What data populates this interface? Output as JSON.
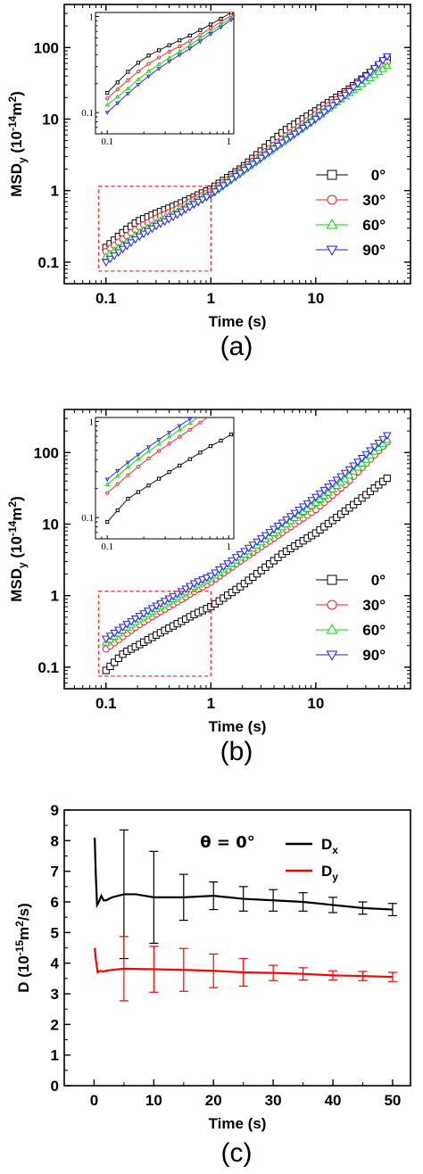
{
  "chart_data": [
    {
      "id": "a",
      "type": "scatter",
      "panel_label": "(a)",
      "xlabel": "Time (s)",
      "ylabel": {
        "base": "MSD",
        "sub": "y",
        "unit": " (10",
        "exp": "-14",
        "unit2": "m",
        "exp2": "2",
        "close": ")"
      },
      "xscale": "log",
      "yscale": "log",
      "xlim": [
        0.04,
        80
      ],
      "ylim": [
        0.05,
        400
      ],
      "xticks": [
        {
          "v": 0.1,
          "label": "0.1"
        },
        {
          "v": 1,
          "label": "1"
        },
        {
          "v": 10,
          "label": "10"
        }
      ],
      "yticks": [
        {
          "v": 0.1,
          "label": "0.1"
        },
        {
          "v": 1,
          "label": "1"
        },
        {
          "v": 10,
          "label": "10"
        },
        {
          "v": 100,
          "label": "100"
        }
      ],
      "legend_position": "right",
      "series": [
        {
          "name": "0°",
          "color": "#000000",
          "marker": "square",
          "points": [
            [
              0.1,
              0.16
            ],
            [
              0.15,
              0.27
            ],
            [
              0.2,
              0.37
            ],
            [
              0.3,
              0.48
            ],
            [
              0.5,
              0.65
            ],
            [
              0.7,
              0.82
            ],
            [
              1,
              1.05
            ],
            [
              2,
              2.1
            ],
            [
              5,
              6.8
            ],
            [
              10,
              13
            ],
            [
              20,
              25
            ],
            [
              50,
              72
            ]
          ]
        },
        {
          "name": "30°",
          "color": "#ff2020",
          "marker": "circle",
          "points": [
            [
              0.1,
              0.14
            ],
            [
              0.15,
              0.22
            ],
            [
              0.2,
              0.3
            ],
            [
              0.3,
              0.41
            ],
            [
              0.5,
              0.57
            ],
            [
              0.7,
              0.75
            ],
            [
              1,
              0.98
            ],
            [
              2,
              2.0
            ],
            [
              5,
              5.5
            ],
            [
              10,
              11.5
            ],
            [
              20,
              24
            ],
            [
              50,
              65
            ]
          ]
        },
        {
          "name": "60°",
          "color": "#00dd00",
          "marker": "triangle-up",
          "points": [
            [
              0.1,
              0.12
            ],
            [
              0.15,
              0.18
            ],
            [
              0.2,
              0.25
            ],
            [
              0.3,
              0.35
            ],
            [
              0.5,
              0.52
            ],
            [
              0.7,
              0.7
            ],
            [
              1,
              0.92
            ],
            [
              2,
              1.9
            ],
            [
              5,
              5.0
            ],
            [
              10,
              10.5
            ],
            [
              20,
              22
            ],
            [
              50,
              58
            ]
          ]
        },
        {
          "name": "90°",
          "color": "#2020ff",
          "marker": "triangle-down",
          "points": [
            [
              0.1,
              0.1
            ],
            [
              0.15,
              0.16
            ],
            [
              0.2,
              0.22
            ],
            [
              0.3,
              0.32
            ],
            [
              0.5,
              0.48
            ],
            [
              0.7,
              0.65
            ],
            [
              1,
              0.88
            ],
            [
              2,
              1.85
            ],
            [
              5,
              4.9
            ],
            [
              10,
              10.0
            ],
            [
              20,
              23
            ],
            [
              50,
              80
            ]
          ]
        }
      ],
      "inset": {
        "xlim": [
          0.08,
          1.1
        ],
        "ylim": [
          0.06,
          1.1
        ],
        "xticks": [
          {
            "v": 0.1,
            "label": "0.1"
          },
          {
            "v": 1,
            "label": "1"
          }
        ],
        "yticks": [
          {
            "v": 0.1,
            "label": "0.1"
          },
          {
            "v": 1,
            "label": "1"
          }
        ]
      }
    },
    {
      "id": "b",
      "type": "scatter",
      "panel_label": "(b)",
      "xlabel": "Time (s)",
      "ylabel": {
        "base": "MSD",
        "sub": "y",
        "unit": " (10",
        "exp": "-14",
        "unit2": "m",
        "exp2": "2",
        "close": ")"
      },
      "xscale": "log",
      "yscale": "log",
      "xlim": [
        0.04,
        80
      ],
      "ylim": [
        0.05,
        400
      ],
      "xticks": [
        {
          "v": 0.1,
          "label": "0.1"
        },
        {
          "v": 1,
          "label": "1"
        },
        {
          "v": 10,
          "label": "10"
        }
      ],
      "yticks": [
        {
          "v": 0.1,
          "label": "0.1"
        },
        {
          "v": 1,
          "label": "1"
        },
        {
          "v": 10,
          "label": "10"
        },
        {
          "v": 100,
          "label": "100"
        }
      ],
      "legend_position": "right",
      "series": [
        {
          "name": "0°",
          "color": "#000000",
          "marker": "square",
          "points": [
            [
              0.1,
              0.09
            ],
            [
              0.15,
              0.16
            ],
            [
              0.2,
              0.2
            ],
            [
              0.3,
              0.28
            ],
            [
              0.5,
              0.42
            ],
            [
              0.7,
              0.55
            ],
            [
              1,
              0.7
            ],
            [
              2,
              1.4
            ],
            [
              5,
              4.0
            ],
            [
              10,
              7.5
            ],
            [
              20,
              16
            ],
            [
              50,
              46
            ]
          ]
        },
        {
          "name": "30°",
          "color": "#ff2020",
          "marker": "circle",
          "points": [
            [
              0.1,
              0.18
            ],
            [
              0.15,
              0.28
            ],
            [
              0.2,
              0.38
            ],
            [
              0.3,
              0.55
            ],
            [
              0.5,
              0.85
            ],
            [
              0.7,
              1.15
            ],
            [
              1,
              1.55
            ],
            [
              2,
              3.2
            ],
            [
              5,
              8.0
            ],
            [
              10,
              16
            ],
            [
              20,
              38
            ],
            [
              50,
              150
            ]
          ]
        },
        {
          "name": "60°",
          "color": "#00dd00",
          "marker": "triangle-up",
          "points": [
            [
              0.1,
              0.22
            ],
            [
              0.15,
              0.34
            ],
            [
              0.2,
              0.45
            ],
            [
              0.3,
              0.65
            ],
            [
              0.5,
              1.0
            ],
            [
              0.7,
              1.35
            ],
            [
              1,
              1.75
            ],
            [
              2,
              3.6
            ],
            [
              5,
              9.5
            ],
            [
              10,
              20
            ],
            [
              20,
              45
            ],
            [
              50,
              160
            ]
          ]
        },
        {
          "name": "90°",
          "color": "#2020ff",
          "marker": "triangle-down",
          "points": [
            [
              0.1,
              0.25
            ],
            [
              0.15,
              0.38
            ],
            [
              0.2,
              0.5
            ],
            [
              0.3,
              0.72
            ],
            [
              0.5,
              1.1
            ],
            [
              0.7,
              1.5
            ],
            [
              1,
              1.9
            ],
            [
              2,
              4.0
            ],
            [
              5,
              11
            ],
            [
              10,
              24
            ],
            [
              20,
              55
            ],
            [
              50,
              185
            ]
          ]
        }
      ],
      "inset": {
        "xlim": [
          0.08,
          1.1
        ],
        "ylim": [
          0.06,
          1.1
        ],
        "xticks": [
          {
            "v": 0.1,
            "label": "0.1"
          },
          {
            "v": 1,
            "label": "1"
          }
        ],
        "yticks": [
          {
            "v": 0.1,
            "label": "0.1"
          },
          {
            "v": 1,
            "label": "1"
          }
        ]
      }
    },
    {
      "id": "c",
      "type": "line",
      "panel_label": "(c)",
      "xlabel": "Time (s)",
      "ylabel": {
        "base": "D (10",
        "exp": "-15",
        "unit": "m",
        "exp2": "2",
        "close": "/s)"
      },
      "annotation": "θ = 0°",
      "xscale": "linear",
      "yscale": "linear",
      "xlim": [
        -5,
        53
      ],
      "ylim": [
        0,
        9
      ],
      "xticks": [
        {
          "v": 0,
          "label": "0"
        },
        {
          "v": 10,
          "label": "10"
        },
        {
          "v": 20,
          "label": "20"
        },
        {
          "v": 30,
          "label": "30"
        },
        {
          "v": 40,
          "label": "40"
        },
        {
          "v": 50,
          "label": "50"
        }
      ],
      "yticks": [
        {
          "v": 0,
          "label": "0"
        },
        {
          "v": 1,
          "label": "1"
        },
        {
          "v": 2,
          "label": "2"
        },
        {
          "v": 3,
          "label": "3"
        },
        {
          "v": 4,
          "label": "4"
        },
        {
          "v": 5,
          "label": "5"
        },
        {
          "v": 6,
          "label": "6"
        },
        {
          "v": 7,
          "label": "7"
        },
        {
          "v": 8,
          "label": "8"
        },
        {
          "v": 9,
          "label": "9"
        }
      ],
      "legend_position": "top-right",
      "series": [
        {
          "name": "D",
          "name_sub": "x",
          "color": "#000000",
          "points": [
            [
              0.1,
              8.1
            ],
            [
              0.3,
              6.8
            ],
            [
              0.5,
              5.9
            ],
            [
              0.8,
              6.0
            ],
            [
              1.2,
              6.2
            ],
            [
              1.6,
              6.05
            ],
            [
              2,
              6.05
            ],
            [
              3,
              6.15
            ],
            [
              5,
              6.25
            ],
            [
              7,
              6.25
            ],
            [
              10,
              6.15
            ],
            [
              15,
              6.15
            ],
            [
              20,
              6.2
            ],
            [
              25,
              6.1
            ],
            [
              30,
              6.05
            ],
            [
              35,
              6.0
            ],
            [
              40,
              5.9
            ],
            [
              45,
              5.8
            ],
            [
              50,
              5.75
            ]
          ],
          "errors": [
            [
              5,
              2.1
            ],
            [
              10,
              1.5
            ],
            [
              15,
              0.75
            ],
            [
              20,
              0.45
            ],
            [
              25,
              0.4
            ],
            [
              30,
              0.35
            ],
            [
              35,
              0.3
            ],
            [
              40,
              0.25
            ],
            [
              45,
              0.2
            ],
            [
              50,
              0.2
            ]
          ]
        },
        {
          "name": "D",
          "name_sub": "y",
          "color": "#ff0000",
          "points": [
            [
              0.1,
              4.5
            ],
            [
              0.3,
              4.1
            ],
            [
              0.6,
              3.7
            ],
            [
              1,
              3.75
            ],
            [
              1.5,
              3.72
            ],
            [
              2,
              3.75
            ],
            [
              3,
              3.78
            ],
            [
              5,
              3.82
            ],
            [
              10,
              3.8
            ],
            [
              15,
              3.78
            ],
            [
              20,
              3.75
            ],
            [
              25,
              3.7
            ],
            [
              30,
              3.68
            ],
            [
              35,
              3.65
            ],
            [
              40,
              3.6
            ],
            [
              45,
              3.58
            ],
            [
              50,
              3.55
            ]
          ],
          "errors": [
            [
              5,
              1.05
            ],
            [
              10,
              0.75
            ],
            [
              15,
              0.7
            ],
            [
              20,
              0.55
            ],
            [
              25,
              0.45
            ],
            [
              30,
              0.25
            ],
            [
              35,
              0.2
            ],
            [
              40,
              0.15
            ],
            [
              45,
              0.15
            ],
            [
              50,
              0.15
            ]
          ]
        }
      ]
    }
  ]
}
